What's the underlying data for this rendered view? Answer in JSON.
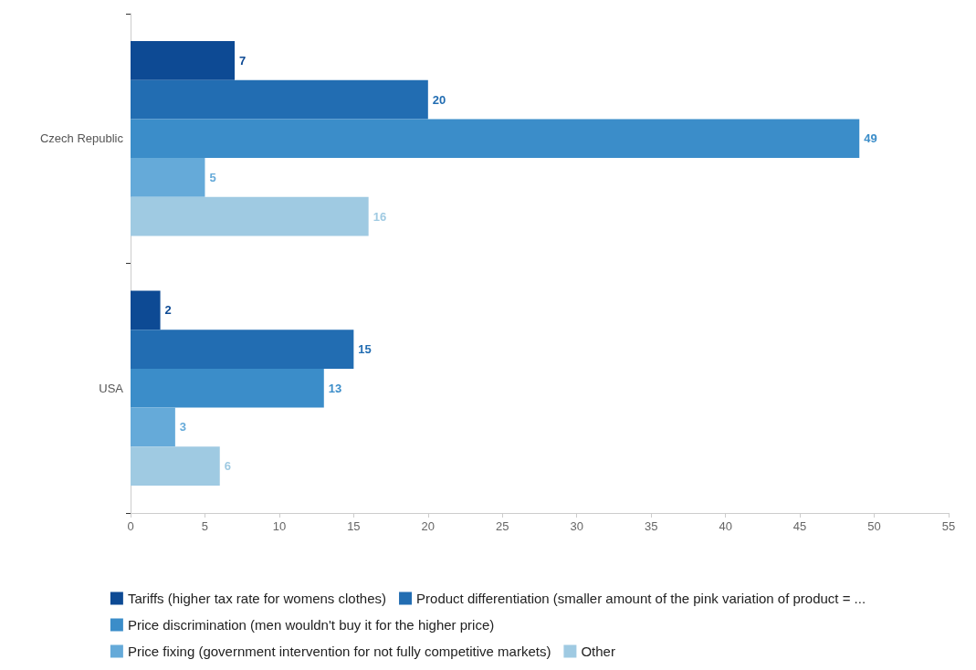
{
  "chart_data": {
    "type": "bar",
    "orientation": "horizontal",
    "categories": [
      "Czech Republic",
      "USA"
    ],
    "series": [
      {
        "name": "Tariffs (higher tax rate for womens clothes)",
        "color": "#0d4a94",
        "values": [
          7,
          2
        ]
      },
      {
        "name": "Product differentiation (smaller amount of the pink variation of product = ...",
        "color": "#226db2",
        "values": [
          20,
          15
        ]
      },
      {
        "name": "Price discrimination (men wouldn't buy it for the higher price)",
        "color": "#3b8dc9",
        "values": [
          49,
          13
        ]
      },
      {
        "name": "Price fixing (government intervention for not fully competitive markets)",
        "color": "#65aad9",
        "values": [
          5,
          3
        ]
      },
      {
        "name": "Other",
        "color": "#9fcae2",
        "values": [
          16,
          6
        ]
      }
    ],
    "xlim": [
      0,
      55
    ],
    "xticks": [
      0,
      5,
      10,
      15,
      20,
      25,
      30,
      35,
      40,
      45,
      50,
      55
    ],
    "data_labels": true,
    "grid": false,
    "legend": "bottom"
  }
}
